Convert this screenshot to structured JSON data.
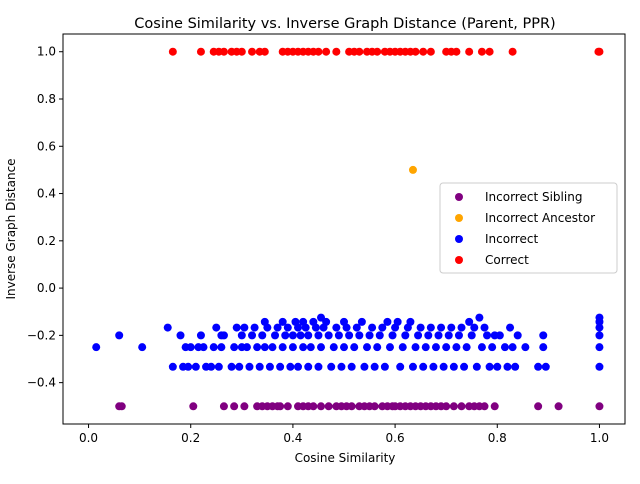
{
  "chart_data": {
    "type": "scatter",
    "title": "Cosine Similarity vs. Inverse Graph Distance (Parent, PPR)",
    "xlabel": "Cosine Similarity",
    "ylabel": "Inverse Graph Distance",
    "xlim": [
      -0.05,
      1.05
    ],
    "ylim": [
      -0.575,
      1.075
    ],
    "xticks": [
      0.0,
      0.2,
      0.4,
      0.6,
      0.8,
      1.0
    ],
    "xtick_labels": [
      "0.0",
      "0.2",
      "0.4",
      "0.6",
      "0.8",
      "1.0"
    ],
    "yticks": [
      -0.4,
      -0.2,
      0.0,
      0.2,
      0.4,
      0.6,
      0.8,
      1.0
    ],
    "ytick_labels": [
      "−0.4",
      "−0.2",
      "0.0",
      "0.2",
      "0.4",
      "0.6",
      "0.8",
      "1.0"
    ],
    "grid": false,
    "legend_position": "center-right",
    "series": [
      {
        "name": "Incorrect Sibling",
        "color": "#800080",
        "points": [
          [
            0.06,
            -0.5
          ],
          [
            0.065,
            -0.5
          ],
          [
            0.205,
            -0.5
          ],
          [
            0.265,
            -0.5
          ],
          [
            0.285,
            -0.5
          ],
          [
            0.305,
            -0.5
          ],
          [
            0.33,
            -0.5
          ],
          [
            0.34,
            -0.5
          ],
          [
            0.35,
            -0.5
          ],
          [
            0.36,
            -0.5
          ],
          [
            0.37,
            -0.5
          ],
          [
            0.375,
            -0.5
          ],
          [
            0.39,
            -0.5
          ],
          [
            0.41,
            -0.5
          ],
          [
            0.42,
            -0.5
          ],
          [
            0.43,
            -0.5
          ],
          [
            0.44,
            -0.5
          ],
          [
            0.455,
            -0.5
          ],
          [
            0.47,
            -0.5
          ],
          [
            0.485,
            -0.5
          ],
          [
            0.495,
            -0.5
          ],
          [
            0.505,
            -0.5
          ],
          [
            0.515,
            -0.5
          ],
          [
            0.53,
            -0.5
          ],
          [
            0.54,
            -0.5
          ],
          [
            0.55,
            -0.5
          ],
          [
            0.56,
            -0.5
          ],
          [
            0.575,
            -0.5
          ],
          [
            0.585,
            -0.5
          ],
          [
            0.595,
            -0.5
          ],
          [
            0.6,
            -0.5
          ],
          [
            0.61,
            -0.5
          ],
          [
            0.62,
            -0.5
          ],
          [
            0.63,
            -0.5
          ],
          [
            0.64,
            -0.5
          ],
          [
            0.65,
            -0.5
          ],
          [
            0.66,
            -0.5
          ],
          [
            0.67,
            -0.5
          ],
          [
            0.68,
            -0.5
          ],
          [
            0.69,
            -0.5
          ],
          [
            0.7,
            -0.5
          ],
          [
            0.715,
            -0.5
          ],
          [
            0.73,
            -0.5
          ],
          [
            0.745,
            -0.5
          ],
          [
            0.755,
            -0.5
          ],
          [
            0.765,
            -0.5
          ],
          [
            0.775,
            -0.5
          ],
          [
            0.795,
            -0.5
          ],
          [
            0.88,
            -0.5
          ],
          [
            0.92,
            -0.5
          ],
          [
            1.0,
            -0.5
          ]
        ]
      },
      {
        "name": "Incorrect Ancestor",
        "color": "#ffa500",
        "points": [
          [
            0.635,
            0.5
          ]
        ]
      },
      {
        "name": "Incorrect",
        "color": "#0000ff",
        "points": [
          [
            0.015,
            -0.25
          ],
          [
            0.06,
            -0.2
          ],
          [
            0.105,
            -0.25
          ],
          [
            0.155,
            -0.167
          ],
          [
            0.165,
            -0.333
          ],
          [
            0.18,
            -0.2
          ],
          [
            0.185,
            -0.333
          ],
          [
            0.19,
            -0.25
          ],
          [
            0.195,
            -0.333
          ],
          [
            0.2,
            -0.25
          ],
          [
            0.21,
            -0.333
          ],
          [
            0.215,
            -0.25
          ],
          [
            0.22,
            -0.2
          ],
          [
            0.225,
            -0.25
          ],
          [
            0.23,
            -0.333
          ],
          [
            0.24,
            -0.333
          ],
          [
            0.245,
            -0.25
          ],
          [
            0.25,
            -0.167
          ],
          [
            0.255,
            -0.333
          ],
          [
            0.26,
            -0.25
          ],
          [
            0.26,
            -0.2
          ],
          [
            0.265,
            -0.2
          ],
          [
            0.28,
            -0.333
          ],
          [
            0.285,
            -0.25
          ],
          [
            0.29,
            -0.167
          ],
          [
            0.295,
            -0.333
          ],
          [
            0.3,
            -0.25
          ],
          [
            0.3,
            -0.2
          ],
          [
            0.305,
            -0.167
          ],
          [
            0.31,
            -0.25
          ],
          [
            0.315,
            -0.333
          ],
          [
            0.32,
            -0.2
          ],
          [
            0.325,
            -0.167
          ],
          [
            0.33,
            -0.25
          ],
          [
            0.335,
            -0.333
          ],
          [
            0.34,
            -0.2
          ],
          [
            0.345,
            -0.25
          ],
          [
            0.345,
            -0.143
          ],
          [
            0.35,
            -0.167
          ],
          [
            0.355,
            -0.333
          ],
          [
            0.36,
            -0.25
          ],
          [
            0.365,
            -0.2
          ],
          [
            0.37,
            -0.167
          ],
          [
            0.375,
            -0.333
          ],
          [
            0.38,
            -0.25
          ],
          [
            0.38,
            -0.143
          ],
          [
            0.385,
            -0.2
          ],
          [
            0.39,
            -0.167
          ],
          [
            0.395,
            -0.333
          ],
          [
            0.4,
            -0.25
          ],
          [
            0.4,
            -0.2
          ],
          [
            0.405,
            -0.143
          ],
          [
            0.41,
            -0.167
          ],
          [
            0.41,
            -0.333
          ],
          [
            0.415,
            -0.2
          ],
          [
            0.42,
            -0.25
          ],
          [
            0.42,
            -0.143
          ],
          [
            0.425,
            -0.167
          ],
          [
            0.43,
            -0.333
          ],
          [
            0.43,
            -0.2
          ],
          [
            0.435,
            -0.25
          ],
          [
            0.44,
            -0.143
          ],
          [
            0.445,
            -0.167
          ],
          [
            0.45,
            -0.2
          ],
          [
            0.45,
            -0.333
          ],
          [
            0.455,
            -0.125
          ],
          [
            0.455,
            -0.25
          ],
          [
            0.46,
            -0.167
          ],
          [
            0.465,
            -0.143
          ],
          [
            0.47,
            -0.2
          ],
          [
            0.475,
            -0.333
          ],
          [
            0.48,
            -0.25
          ],
          [
            0.485,
            -0.167
          ],
          [
            0.49,
            -0.2
          ],
          [
            0.495,
            -0.333
          ],
          [
            0.5,
            -0.25
          ],
          [
            0.5,
            -0.143
          ],
          [
            0.505,
            -0.167
          ],
          [
            0.51,
            -0.2
          ],
          [
            0.515,
            -0.333
          ],
          [
            0.52,
            -0.25
          ],
          [
            0.525,
            -0.167
          ],
          [
            0.53,
            -0.2
          ],
          [
            0.535,
            -0.143
          ],
          [
            0.54,
            -0.333
          ],
          [
            0.545,
            -0.25
          ],
          [
            0.55,
            -0.2
          ],
          [
            0.555,
            -0.167
          ],
          [
            0.56,
            -0.333
          ],
          [
            0.565,
            -0.25
          ],
          [
            0.57,
            -0.2
          ],
          [
            0.575,
            -0.167
          ],
          [
            0.58,
            -0.333
          ],
          [
            0.585,
            -0.143
          ],
          [
            0.59,
            -0.25
          ],
          [
            0.595,
            -0.2
          ],
          [
            0.6,
            -0.167
          ],
          [
            0.605,
            -0.143
          ],
          [
            0.61,
            -0.333
          ],
          [
            0.615,
            -0.25
          ],
          [
            0.62,
            -0.2
          ],
          [
            0.625,
            -0.167
          ],
          [
            0.63,
            -0.143
          ],
          [
            0.635,
            -0.333
          ],
          [
            0.64,
            -0.25
          ],
          [
            0.645,
            -0.2
          ],
          [
            0.65,
            -0.167
          ],
          [
            0.655,
            -0.333
          ],
          [
            0.66,
            -0.25
          ],
          [
            0.665,
            -0.2
          ],
          [
            0.67,
            -0.167
          ],
          [
            0.675,
            -0.333
          ],
          [
            0.68,
            -0.25
          ],
          [
            0.685,
            -0.2
          ],
          [
            0.69,
            -0.167
          ],
          [
            0.695,
            -0.333
          ],
          [
            0.7,
            -0.25
          ],
          [
            0.705,
            -0.2
          ],
          [
            0.71,
            -0.167
          ],
          [
            0.715,
            -0.333
          ],
          [
            0.72,
            -0.25
          ],
          [
            0.725,
            -0.2
          ],
          [
            0.73,
            -0.167
          ],
          [
            0.735,
            -0.333
          ],
          [
            0.74,
            -0.25
          ],
          [
            0.745,
            -0.143
          ],
          [
            0.75,
            -0.2
          ],
          [
            0.755,
            -0.167
          ],
          [
            0.76,
            -0.333
          ],
          [
            0.765,
            -0.125
          ],
          [
            0.77,
            -0.25
          ],
          [
            0.775,
            -0.167
          ],
          [
            0.78,
            -0.2
          ],
          [
            0.785,
            -0.333
          ],
          [
            0.79,
            -0.25
          ],
          [
            0.795,
            -0.2
          ],
          [
            0.8,
            -0.333
          ],
          [
            0.805,
            -0.2
          ],
          [
            0.815,
            -0.25
          ],
          [
            0.82,
            -0.333
          ],
          [
            0.825,
            -0.167
          ],
          [
            0.83,
            -0.25
          ],
          [
            0.835,
            -0.333
          ],
          [
            0.84,
            -0.2
          ],
          [
            0.855,
            -0.25
          ],
          [
            0.88,
            -0.333
          ],
          [
            0.89,
            -0.2
          ],
          [
            0.89,
            -0.25
          ],
          [
            0.895,
            -0.333
          ],
          [
            1.0,
            -0.125
          ],
          [
            1.0,
            -0.143
          ],
          [
            1.0,
            -0.167
          ],
          [
            1.0,
            -0.2
          ],
          [
            1.0,
            -0.25
          ],
          [
            1.0,
            -0.333
          ]
        ]
      },
      {
        "name": "Correct",
        "color": "#ff0000",
        "points": [
          [
            0.165,
            1.0
          ],
          [
            0.22,
            1.0
          ],
          [
            0.245,
            1.0
          ],
          [
            0.255,
            1.0
          ],
          [
            0.265,
            1.0
          ],
          [
            0.28,
            1.0
          ],
          [
            0.29,
            1.0
          ],
          [
            0.3,
            1.0
          ],
          [
            0.32,
            1.0
          ],
          [
            0.335,
            1.0
          ],
          [
            0.345,
            1.0
          ],
          [
            0.38,
            1.0
          ],
          [
            0.39,
            1.0
          ],
          [
            0.4,
            1.0
          ],
          [
            0.41,
            1.0
          ],
          [
            0.42,
            1.0
          ],
          [
            0.43,
            1.0
          ],
          [
            0.44,
            1.0
          ],
          [
            0.45,
            1.0
          ],
          [
            0.465,
            1.0
          ],
          [
            0.485,
            1.0
          ],
          [
            0.51,
            1.0
          ],
          [
            0.52,
            1.0
          ],
          [
            0.53,
            1.0
          ],
          [
            0.545,
            1.0
          ],
          [
            0.555,
            1.0
          ],
          [
            0.565,
            1.0
          ],
          [
            0.58,
            1.0
          ],
          [
            0.59,
            1.0
          ],
          [
            0.6,
            1.0
          ],
          [
            0.61,
            1.0
          ],
          [
            0.62,
            1.0
          ],
          [
            0.63,
            1.0
          ],
          [
            0.64,
            1.0
          ],
          [
            0.655,
            1.0
          ],
          [
            0.67,
            1.0
          ],
          [
            0.7,
            1.0
          ],
          [
            0.71,
            1.0
          ],
          [
            0.72,
            1.0
          ],
          [
            0.745,
            1.0
          ],
          [
            0.77,
            1.0
          ],
          [
            0.785,
            1.0
          ],
          [
            0.83,
            1.0
          ],
          [
            0.998,
            1.0
          ],
          [
            1.0,
            1.0
          ]
        ]
      }
    ]
  }
}
